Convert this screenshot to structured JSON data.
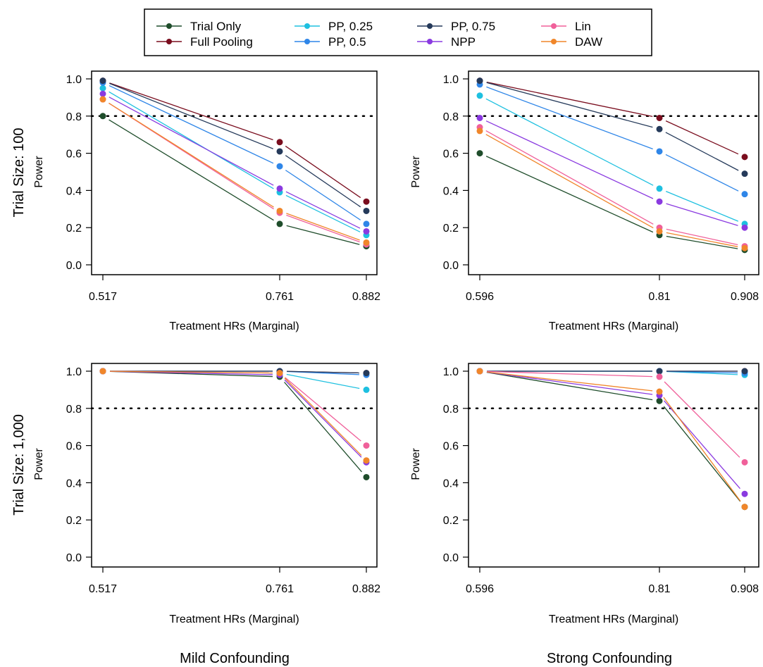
{
  "legend": {
    "entries": [
      {
        "name": "Trial Only",
        "color": "#1f4d2b"
      },
      {
        "name": "Full Pooling",
        "color": "#7a0d1e"
      },
      {
        "name": "PP, 0.25",
        "color": "#1ec0e0"
      },
      {
        "name": "PP, 0.5",
        "color": "#2f86e8"
      },
      {
        "name": "PP, 0.75",
        "color": "#253a5a"
      },
      {
        "name": "NPP",
        "color": "#8a3ae0"
      },
      {
        "name": "Lin",
        "color": "#f0609a"
      },
      {
        "name": "DAW",
        "color": "#f0862a"
      }
    ]
  },
  "row_titles": [
    "Trial Size: 100",
    "Trial Size: 1,000"
  ],
  "col_titles": [
    "Mild Confounding",
    "Strong Confounding"
  ],
  "reference_line": 0.8,
  "chart_data": [
    {
      "type": "line",
      "panel": "top-left",
      "title": "",
      "xlabel": "Treatment HRs (Marginal)",
      "ylabel": "Power",
      "x": [
        0.517,
        0.761,
        0.882
      ],
      "x_tick_labels": [
        "0.517",
        "0.761",
        "0.882"
      ],
      "ylim": [
        0,
        1
      ],
      "y_ticks": [
        "0.0",
        "0.2",
        "0.4",
        "0.6",
        "0.8",
        "1.0"
      ],
      "series": [
        {
          "name": "Trial Only",
          "values": [
            0.8,
            0.22,
            0.1
          ]
        },
        {
          "name": "Full Pooling",
          "values": [
            0.99,
            0.66,
            0.34
          ]
        },
        {
          "name": "PP, 0.25",
          "values": [
            0.95,
            0.39,
            0.16
          ]
        },
        {
          "name": "PP, 0.5",
          "values": [
            0.98,
            0.53,
            0.22
          ]
        },
        {
          "name": "PP, 0.75",
          "values": [
            0.99,
            0.61,
            0.29
          ]
        },
        {
          "name": "NPP",
          "values": [
            0.92,
            0.41,
            0.18
          ]
        },
        {
          "name": "Lin",
          "values": [
            0.89,
            0.28,
            0.11
          ]
        },
        {
          "name": "DAW",
          "values": [
            0.89,
            0.29,
            0.12
          ]
        }
      ]
    },
    {
      "type": "line",
      "panel": "top-right",
      "title": "",
      "xlabel": "Treatment HRs (Marginal)",
      "ylabel": "Power",
      "x": [
        0.596,
        0.81,
        0.908
      ],
      "x_tick_labels": [
        "0.596",
        "0.81",
        "0.908"
      ],
      "ylim": [
        0,
        1
      ],
      "y_ticks": [
        "0.0",
        "0.2",
        "0.4",
        "0.6",
        "0.8",
        "1.0"
      ],
      "series": [
        {
          "name": "Trial Only",
          "values": [
            0.6,
            0.16,
            0.08
          ]
        },
        {
          "name": "Full Pooling",
          "values": [
            0.99,
            0.79,
            0.58
          ]
        },
        {
          "name": "PP, 0.25",
          "values": [
            0.91,
            0.41,
            0.22
          ]
        },
        {
          "name": "PP, 0.5",
          "values": [
            0.97,
            0.61,
            0.38
          ]
        },
        {
          "name": "PP, 0.75",
          "values": [
            0.99,
            0.73,
            0.49
          ]
        },
        {
          "name": "NPP",
          "values": [
            0.79,
            0.34,
            0.2
          ]
        },
        {
          "name": "Lin",
          "values": [
            0.74,
            0.2,
            0.1
          ]
        },
        {
          "name": "DAW",
          "values": [
            0.72,
            0.18,
            0.09
          ]
        }
      ]
    },
    {
      "type": "line",
      "panel": "bottom-left",
      "title": "Mild Confounding",
      "xlabel": "Treatment HRs (Marginal)",
      "ylabel": "Power",
      "x": [
        0.517,
        0.761,
        0.882
      ],
      "x_tick_labels": [
        "0.517",
        "0.761",
        "0.882"
      ],
      "ylim": [
        0,
        1
      ],
      "y_ticks": [
        "0.0",
        "0.2",
        "0.4",
        "0.6",
        "0.8",
        "1.0"
      ],
      "series": [
        {
          "name": "Trial Only",
          "values": [
            1.0,
            0.97,
            0.43
          ]
        },
        {
          "name": "Full Pooling",
          "values": [
            1.0,
            1.0,
            0.99
          ]
        },
        {
          "name": "PP, 0.25",
          "values": [
            1.0,
            0.99,
            0.9
          ]
        },
        {
          "name": "PP, 0.5",
          "values": [
            1.0,
            1.0,
            0.98
          ]
        },
        {
          "name": "PP, 0.75",
          "values": [
            1.0,
            1.0,
            0.99
          ]
        },
        {
          "name": "NPP",
          "values": [
            1.0,
            0.98,
            0.51
          ]
        },
        {
          "name": "Lin",
          "values": [
            1.0,
            0.99,
            0.6
          ]
        },
        {
          "name": "DAW",
          "values": [
            1.0,
            0.99,
            0.52
          ]
        }
      ]
    },
    {
      "type": "line",
      "panel": "bottom-right",
      "title": "Strong Confounding",
      "xlabel": "Treatment HRs (Marginal)",
      "ylabel": "Power",
      "x": [
        0.596,
        0.81,
        0.908
      ],
      "x_tick_labels": [
        "0.596",
        "0.81",
        "0.908"
      ],
      "ylim": [
        0,
        1
      ],
      "y_ticks": [
        "0.0",
        "0.2",
        "0.4",
        "0.6",
        "0.8",
        "1.0"
      ],
      "series": [
        {
          "name": "Trial Only",
          "values": [
            1.0,
            0.84,
            0.27
          ]
        },
        {
          "name": "Full Pooling",
          "values": [
            1.0,
            1.0,
            1.0
          ]
        },
        {
          "name": "PP, 0.25",
          "values": [
            1.0,
            1.0,
            0.98
          ]
        },
        {
          "name": "PP, 0.5",
          "values": [
            1.0,
            1.0,
            0.99
          ]
        },
        {
          "name": "PP, 0.75",
          "values": [
            1.0,
            1.0,
            1.0
          ]
        },
        {
          "name": "NPP",
          "values": [
            1.0,
            0.87,
            0.34
          ]
        },
        {
          "name": "Lin",
          "values": [
            1.0,
            0.97,
            0.51
          ]
        },
        {
          "name": "DAW",
          "values": [
            1.0,
            0.89,
            0.27
          ]
        }
      ]
    }
  ]
}
